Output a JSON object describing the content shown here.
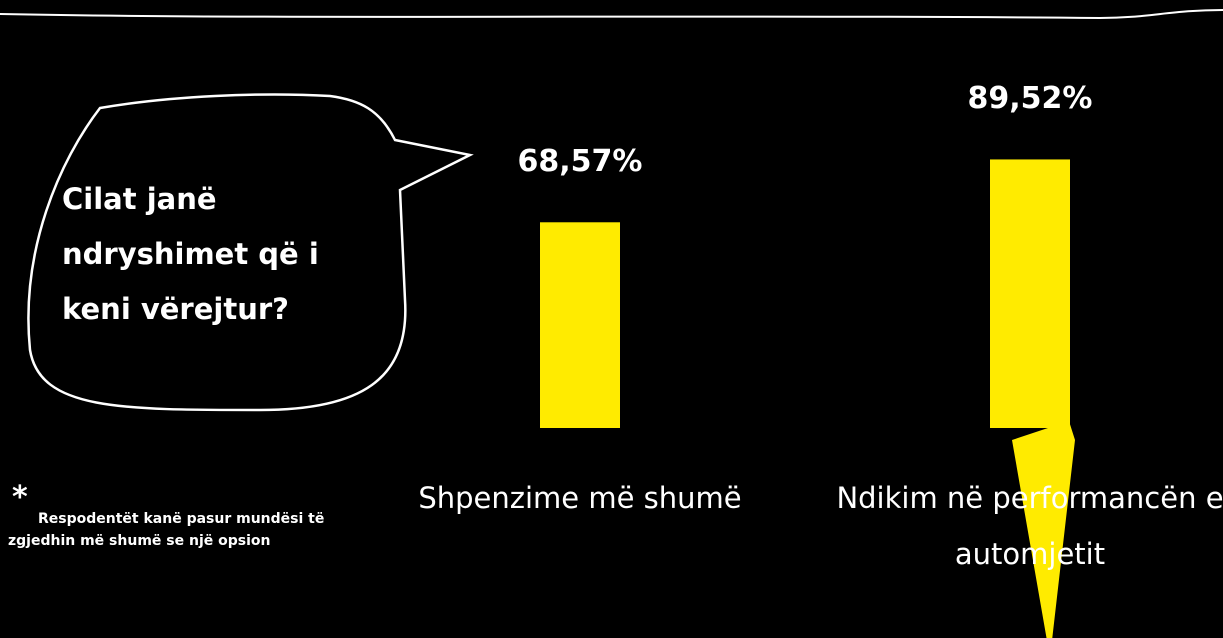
{
  "title": "Cilat janë ndryshimet që i keni vërejtur?",
  "note_marker": "*",
  "note": "Respodentët kanë pasur mundësi të zgjedhin më shumë se një opsion",
  "chart_data": {
    "type": "bar",
    "categories": [
      "Shpenzime më shumë",
      "Ndikim në performancën e automjetit"
    ],
    "values": [
      68.57,
      89.52
    ],
    "value_labels": [
      "68,57%",
      "89,52%"
    ],
    "color": "#ffeb00",
    "ylim": [
      0,
      100
    ]
  }
}
